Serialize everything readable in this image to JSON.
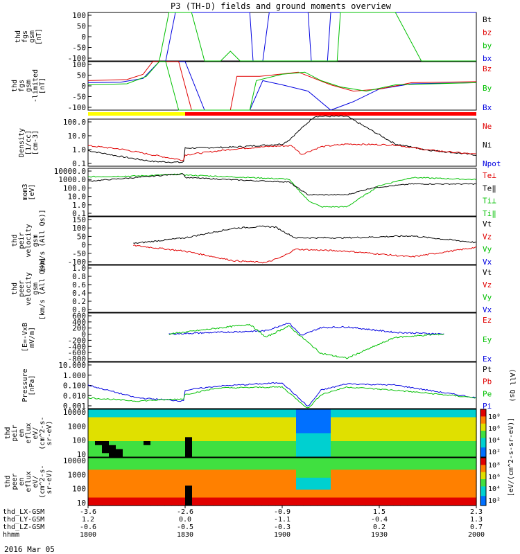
{
  "title": "P3 (TH-D) fields and ground moments overview",
  "date_label": "2016 Mar 05",
  "panels": [
    {
      "id": "fgs",
      "ylabel": [
        "thd",
        "fgs",
        "gsm",
        "[nT]"
      ],
      "ticks": [
        "100",
        "50",
        "0",
        "-50",
        "-100"
      ],
      "legend": [
        {
          "text": "Bt",
          "color": "#000000"
        },
        {
          "text": "bz",
          "color": "#e00000"
        },
        {
          "text": "by",
          "color": "#00c000"
        },
        {
          "text": "bx",
          "color": "#0000e0"
        }
      ]
    },
    {
      "id": "fgs_lim",
      "ylabel": [
        "thd",
        "fgs",
        "gsm",
        "-limited",
        "[nT]"
      ],
      "ticks": [
        "100",
        "50",
        "0",
        "-50",
        "-100"
      ],
      "legend": [
        {
          "text": "Bz",
          "color": "#e00000"
        },
        {
          "text": "By",
          "color": "#00c000"
        },
        {
          "text": "Bx",
          "color": "#0000e0"
        }
      ]
    },
    {
      "id": "density",
      "ylabel": [
        "Density",
        "[1/cc]",
        "[cm-3]"
      ],
      "ticks": [
        "100.0",
        "10.0",
        "1.0",
        "0.1"
      ],
      "legend": [
        {
          "text": "Ne",
          "color": "#e00000"
        },
        {
          "text": "Ni",
          "color": "#000000"
        },
        {
          "text": "Npot",
          "color": "#0000e0"
        }
      ]
    },
    {
      "id": "temp",
      "ylabel": [
        "mom3",
        "[eV]"
      ],
      "ticks": [
        "10000.0",
        "1000.0",
        "100.0",
        "10.0",
        "1.0",
        "0.1"
      ],
      "legend": [
        {
          "text": "Te⊥",
          "color": "#e00000"
        },
        {
          "text": "Te‖",
          "color": "#000000"
        },
        {
          "text": "Ti⊥",
          "color": "#00c000"
        },
        {
          "text": "Ti‖",
          "color": "#00c000"
        }
      ]
    },
    {
      "id": "vi",
      "ylabel": [
        "thd",
        "peir",
        "velocity",
        "gsm",
        "[km/s (All Qs)]"
      ],
      "ticks": [
        "150",
        "100",
        "50",
        "0",
        "-50",
        "-100"
      ],
      "legend": [
        {
          "text": "Vt",
          "color": "#000000"
        },
        {
          "text": "Vz",
          "color": "#e00000"
        },
        {
          "text": "Vy",
          "color": "#00c000"
        },
        {
          "text": "Vx",
          "color": "#0000e0"
        }
      ]
    },
    {
      "id": "ve",
      "ylabel": [
        "thd",
        "peer",
        "velocity",
        "gsm",
        "[km/s (All Qs)]"
      ],
      "ticks": [
        "1.0",
        "0.8",
        "0.6",
        "0.4",
        "0.2",
        "0.0"
      ],
      "legend": [
        {
          "text": "Vt",
          "color": "#000000"
        },
        {
          "text": "Vz",
          "color": "#e00000"
        },
        {
          "text": "Vy",
          "color": "#00c000"
        },
        {
          "text": "Vx",
          "color": "#0000e0"
        }
      ]
    },
    {
      "id": "efield",
      "ylabel": [
        "[E=-VxB",
        "mV/m]"
      ],
      "ticks": [
        "600",
        "400",
        "200",
        "0",
        "-200",
        "-400",
        "-600",
        "-800"
      ],
      "legend": [
        {
          "text": "Ez",
          "color": "#e00000"
        },
        {
          "text": "Ey",
          "color": "#00c000"
        },
        {
          "text": "Ex",
          "color": "#0000e0"
        }
      ]
    },
    {
      "id": "pressure",
      "ylabel": [
        "Pressure",
        "[nPa]"
      ],
      "ticks": [
        "10.000",
        "1.000",
        "0.100",
        "0.010",
        "0.001"
      ],
      "legend": [
        {
          "text": "Pt",
          "color": "#000000"
        },
        {
          "text": "Pb",
          "color": "#e00000"
        },
        {
          "text": "Pe",
          "color": "#00c000"
        },
        {
          "text": "Pi",
          "color": "#0000e0"
        }
      ],
      "legend_side": "(All Qs)"
    },
    {
      "id": "ion_spec",
      "ylabel": [
        "thd",
        "peir",
        "en",
        "eflux",
        "eV/",
        "(cm^2-s-",
        "sr-eV)"
      ],
      "ticks": [
        "10000",
        "1000",
        "100",
        "10"
      ]
    },
    {
      "id": "elec_spec",
      "ylabel": [
        "thd",
        "peer",
        "en",
        "eflux",
        "eV/",
        "(cm^2-s-",
        "sr-eV)"
      ],
      "ticks": [
        "10000",
        "1000",
        "100",
        "10"
      ]
    }
  ],
  "colorbar": {
    "label": "[eV/(cm^2-s-sr-eV)]",
    "ion_ticks": [
      "10⁸",
      "10⁶",
      "10⁴",
      "10²"
    ],
    "elec_ticks": [
      "10⁸",
      "10⁶",
      "10⁴",
      "10²"
    ]
  },
  "bottom_axis": {
    "row_labels": [
      "thd_LX-GSM",
      "thd_LY-GSM",
      "thd_LZ-GSM",
      "hhmm"
    ],
    "columns": [
      {
        "values": [
          "-3.6",
          "1.2",
          "-0.6",
          "1800"
        ]
      },
      {
        "values": [
          "-2.6",
          "0.0",
          "-0.5",
          "1830"
        ]
      },
      {
        "values": [
          "-0.9",
          "-1.1",
          "-0.3",
          "1900"
        ]
      },
      {
        "values": [
          "1.5",
          "-0.4",
          "0.2",
          "1930"
        ]
      },
      {
        "values": [
          "2.3",
          "1.3",
          "0.7",
          "2000"
        ]
      }
    ]
  },
  "chart_data": {
    "type": "line",
    "title": "P3 (TH-D) fields and ground moments overview",
    "x_time_hhmm": [
      "1800",
      "1830",
      "1900",
      "1930",
      "2000"
    ],
    "x_range_hhmm": [
      "1800",
      "2000"
    ],
    "mode_bar": {
      "segments": [
        {
          "from": "1800",
          "to": "1830",
          "color": "#ffff00"
        },
        {
          "from": "1830",
          "to": "1920",
          "color": "#ff0000"
        },
        {
          "from": "1920",
          "to": "2000",
          "color": "#ff0000"
        }
      ]
    },
    "series": [
      {
        "panel": "density",
        "name": "Ni",
        "color": "#000000",
        "t": [
          0,
          10,
          20,
          29.5,
          30,
          45,
          60,
          62,
          70,
          80,
          95,
          105,
          120
        ],
        "values": [
          0.9,
          0.3,
          0.12,
          0.1,
          1.4,
          1.7,
          3,
          6,
          500,
          500,
          3,
          1.0,
          0.4
        ]
      },
      {
        "panel": "density",
        "name": "Ne",
        "color": "#e00000",
        "t": [
          0,
          10,
          20,
          29.5,
          30,
          45,
          57,
          63,
          66,
          72,
          80,
          95,
          105,
          120
        ],
        "values": [
          2.2,
          1.2,
          0.4,
          0.15,
          0.4,
          1.2,
          2.0,
          2.2,
          0.45,
          1.8,
          3.0,
          2.5,
          1.0,
          0.45
        ]
      },
      {
        "panel": "temp",
        "name": "Ti‖",
        "color": "#00c000",
        "t": [
          0,
          15,
          29.5,
          30,
          50,
          62,
          68,
          72,
          80,
          90,
          100,
          120
        ],
        "values": [
          1800,
          2200,
          3500,
          2800,
          1500,
          1000,
          5,
          1,
          1,
          200,
          1500,
          900
        ]
      },
      {
        "panel": "temp",
        "name": "Te‖",
        "color": "#000000",
        "t": [
          0,
          15,
          29.5,
          30,
          50,
          62,
          68,
          80,
          88,
          100,
          120
        ],
        "values": [
          600,
          1500,
          4000,
          1500,
          700,
          500,
          20,
          20,
          120,
          300,
          300
        ]
      },
      {
        "panel": "vi",
        "name": "Vt",
        "color": "#000000",
        "t": [
          14,
          30,
          45,
          55,
          58,
          64,
          80,
          100,
          120
        ],
        "values": [
          10,
          40,
          90,
          100,
          95,
          40,
          40,
          50,
          15
        ]
      },
      {
        "panel": "vi",
        "name": "Vz",
        "color": "#e00000",
        "t": [
          14,
          30,
          45,
          55,
          60,
          64,
          80,
          100,
          120
        ],
        "values": [
          0,
          -30,
          -80,
          -90,
          -60,
          -20,
          -30,
          -60,
          -10
        ]
      },
      {
        "panel": "efield",
        "name": "Ex",
        "color": "#0000e0",
        "t": [
          25,
          55,
          62,
          66,
          72,
          80,
          95,
          110
        ],
        "values": [
          0,
          100,
          350,
          -50,
          200,
          220,
          50,
          0
        ]
      },
      {
        "panel": "efield",
        "name": "Ey",
        "color": "#00c000",
        "t": [
          25,
          50,
          55,
          62,
          72,
          80,
          95,
          110
        ],
        "values": [
          0,
          300,
          -100,
          250,
          -600,
          -750,
          -100,
          0
        ]
      },
      {
        "panel": "pressure",
        "name": "Pi",
        "color": "#0000e0",
        "t": [
          0,
          15,
          29.5,
          30,
          40,
          60,
          68,
          72,
          80,
          95,
          120
        ],
        "values": [
          0.15,
          0.01,
          0.005,
          0.05,
          0.12,
          0.25,
          0.0015,
          0.05,
          0.2,
          0.15,
          0.01
        ]
      },
      {
        "panel": "pressure",
        "name": "Pe",
        "color": "#00c000",
        "t": [
          0,
          15,
          29.5,
          30,
          40,
          60,
          68,
          72,
          80,
          95,
          120
        ],
        "values": [
          0.01,
          0.005,
          0.008,
          0.02,
          0.08,
          0.1,
          0.001,
          0.02,
          0.1,
          0.05,
          0.01
        ]
      }
    ]
  }
}
